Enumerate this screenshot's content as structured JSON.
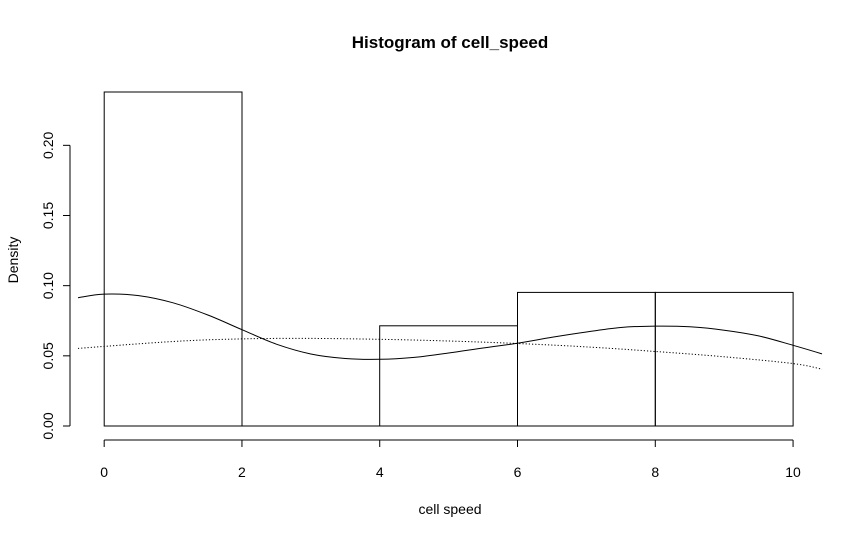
{
  "chart_data": {
    "type": "bar",
    "title": "Histogram of cell_speed",
    "xlabel": "cell speed",
    "ylabel": "Density",
    "bins": [
      {
        "x0": 0,
        "x1": 2,
        "density": 0.238
      },
      {
        "x0": 2,
        "x1": 4,
        "density": 0.0
      },
      {
        "x0": 4,
        "x1": 6,
        "density": 0.0714
      },
      {
        "x0": 6,
        "x1": 8,
        "density": 0.0952
      },
      {
        "x0": 8,
        "x1": 10,
        "density": 0.0952
      }
    ],
    "xlim": [
      -0.38,
      10.42
    ],
    "ylim": [
      0,
      0.238
    ],
    "x_ticks": [
      0,
      2,
      4,
      6,
      8,
      10
    ],
    "y_ticks": [
      0.0,
      0.05,
      0.1,
      0.15,
      0.2
    ],
    "x_tick_labels": [
      "0",
      "2",
      "4",
      "6",
      "8",
      "10"
    ],
    "y_tick_labels": [
      "0.00",
      "0.05",
      "0.10",
      "0.15",
      "0.20"
    ],
    "grid": false,
    "legend": "none",
    "series": [
      {
        "style": "solid",
        "x": [
          -0.38,
          0,
          0.5,
          1,
          1.5,
          2,
          2.5,
          3,
          3.5,
          4,
          4.5,
          5,
          5.5,
          6,
          6.5,
          7,
          7.5,
          8,
          8.5,
          9,
          9.5,
          10,
          10.42
        ],
        "y": [
          0.0914,
          0.094,
          0.0929,
          0.0878,
          0.0792,
          0.0686,
          0.0583,
          0.0513,
          0.0481,
          0.0475,
          0.0489,
          0.052,
          0.0556,
          0.059,
          0.0632,
          0.067,
          0.0702,
          0.0712,
          0.0707,
          0.0683,
          0.0642,
          0.0575,
          0.0514
        ]
      },
      {
        "style": "dotted",
        "x": [
          -0.38,
          1,
          2,
          3,
          4,
          5,
          6,
          7,
          8,
          9,
          10,
          10.42
        ],
        "y": [
          0.0553,
          0.0602,
          0.0621,
          0.0624,
          0.0618,
          0.0606,
          0.0588,
          0.0564,
          0.0531,
          0.0493,
          0.0445,
          0.0405
        ]
      }
    ]
  }
}
